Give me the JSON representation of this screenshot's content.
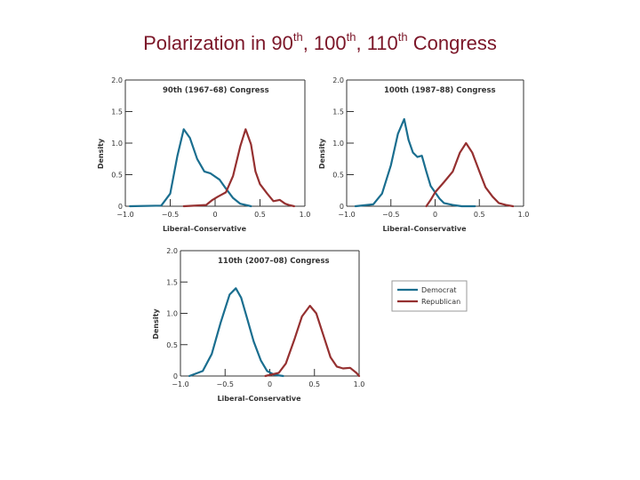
{
  "slide": {
    "title_parts": [
      "Polarization in 90",
      "th",
      ", 100",
      "th",
      ", 110",
      "th",
      " Congress"
    ]
  },
  "colors": {
    "democrat": "#1a6e8f",
    "republican": "#953030"
  },
  "chart_data": [
    {
      "type": "line",
      "title": "90th (1967–68) Congress",
      "xlabel": "Liberal–Conservative",
      "ylabel": "Density",
      "xlim": [
        -1.0,
        1.0
      ],
      "ylim": [
        0,
        2.0
      ],
      "xticks": [
        "−1.0",
        "−0.5",
        "0",
        "0.5",
        "1.0"
      ],
      "yticks": [
        "0",
        "0.5",
        "1.0",
        "1.5",
        "2.0"
      ],
      "series": [
        {
          "name": "Democrat",
          "x": [
            -0.95,
            -0.6,
            -0.5,
            -0.42,
            -0.35,
            -0.28,
            -0.2,
            -0.12,
            -0.05,
            0.05,
            0.12,
            0.2,
            0.28,
            0.4
          ],
          "y": [
            0,
            0.01,
            0.2,
            0.8,
            1.22,
            1.08,
            0.75,
            0.55,
            0.52,
            0.42,
            0.28,
            0.13,
            0.04,
            0
          ]
        },
        {
          "name": "Republican",
          "x": [
            -0.35,
            -0.1,
            -0.03,
            0.03,
            0.12,
            0.2,
            0.28,
            0.34,
            0.4,
            0.45,
            0.5,
            0.58,
            0.65,
            0.72,
            0.78,
            0.82,
            0.88
          ],
          "y": [
            0,
            0.02,
            0.1,
            0.15,
            0.22,
            0.48,
            0.95,
            1.22,
            0.98,
            0.55,
            0.35,
            0.2,
            0.08,
            0.1,
            0.04,
            0.02,
            0
          ]
        }
      ]
    },
    {
      "type": "line",
      "title": "100th (1987–88) Congress",
      "xlabel": "Liberal–Conservative",
      "ylabel": "Density",
      "xlim": [
        -1.0,
        1.0
      ],
      "ylim": [
        0,
        2.0
      ],
      "xticks": [
        "−1.0",
        "−0.5",
        "0",
        "0.5",
        "1.0"
      ],
      "yticks": [
        "0",
        "0.5",
        "1.0",
        "1.5",
        "2.0"
      ],
      "series": [
        {
          "name": "Democrat",
          "x": [
            -0.9,
            -0.7,
            -0.6,
            -0.5,
            -0.42,
            -0.35,
            -0.3,
            -0.25,
            -0.2,
            -0.15,
            -0.1,
            -0.05,
            0.05,
            0.1,
            0.2,
            0.3,
            0.45
          ],
          "y": [
            0,
            0.03,
            0.2,
            0.65,
            1.15,
            1.38,
            1.05,
            0.85,
            0.78,
            0.8,
            0.55,
            0.32,
            0.12,
            0.05,
            0.02,
            0,
            0
          ]
        },
        {
          "name": "Republican",
          "x": [
            -0.1,
            -0.05,
            0.0,
            0.1,
            0.2,
            0.28,
            0.35,
            0.42,
            0.5,
            0.57,
            0.65,
            0.72,
            0.8,
            0.88
          ],
          "y": [
            0,
            0.1,
            0.22,
            0.38,
            0.55,
            0.85,
            1.0,
            0.85,
            0.55,
            0.3,
            0.15,
            0.05,
            0.02,
            0
          ]
        }
      ]
    },
    {
      "type": "line",
      "title": "110th (2007–08) Congress",
      "xlabel": "Liberal–Conservative",
      "ylabel": "Density",
      "xlim": [
        -1.0,
        1.0
      ],
      "ylim": [
        0,
        2.0
      ],
      "xticks": [
        "−1.0",
        "−0.5",
        "0",
        "0.5",
        "1.0"
      ],
      "yticks": [
        "0",
        "0.5",
        "1.0",
        "1.5",
        "2.0"
      ],
      "series": [
        {
          "name": "Democrat",
          "x": [
            -0.9,
            -0.75,
            -0.65,
            -0.55,
            -0.45,
            -0.38,
            -0.32,
            -0.25,
            -0.18,
            -0.1,
            -0.03,
            0.05,
            0.15
          ],
          "y": [
            0,
            0.08,
            0.35,
            0.85,
            1.3,
            1.4,
            1.25,
            0.9,
            0.55,
            0.25,
            0.08,
            0.02,
            0
          ]
        },
        {
          "name": "Republican",
          "x": [
            -0.05,
            0.1,
            0.18,
            0.28,
            0.36,
            0.45,
            0.52,
            0.6,
            0.68,
            0.75,
            0.82,
            0.9,
            0.97,
            1.0
          ],
          "y": [
            0,
            0.05,
            0.2,
            0.6,
            0.95,
            1.12,
            1.0,
            0.65,
            0.3,
            0.15,
            0.12,
            0.13,
            0.05,
            0
          ]
        }
      ]
    }
  ],
  "legend": {
    "items": [
      "Democrat",
      "Republican"
    ]
  }
}
